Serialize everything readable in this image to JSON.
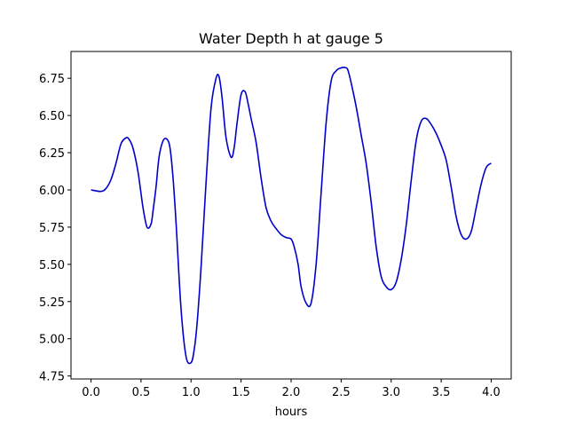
{
  "chart_data": {
    "type": "line",
    "title": "Water Depth h at gauge 5",
    "xlabel": "hours",
    "ylabel": "",
    "xlim": [
      -0.2,
      4.2
    ],
    "ylim": [
      4.73,
      6.93
    ],
    "grid": false,
    "x_ticks": [
      0.0,
      0.5,
      1.0,
      1.5,
      2.0,
      2.5,
      3.0,
      3.5,
      4.0
    ],
    "x_tick_labels": [
      "0.0",
      "0.5",
      "1.0",
      "1.5",
      "2.0",
      "2.5",
      "3.0",
      "3.5",
      "4.0"
    ],
    "y_ticks": [
      4.75,
      5.0,
      5.25,
      5.5,
      5.75,
      6.0,
      6.25,
      6.5,
      6.75
    ],
    "y_tick_labels": [
      "4.75",
      "5.00",
      "5.25",
      "5.50",
      "5.75",
      "6.00",
      "6.25",
      "6.50",
      "6.75"
    ],
    "series": [
      {
        "color": "#0000cc",
        "x": [
          0.0,
          0.1,
          0.15,
          0.2,
          0.25,
          0.3,
          0.35,
          0.38,
          0.42,
          0.47,
          0.52,
          0.56,
          0.6,
          0.62,
          0.65,
          0.68,
          0.72,
          0.76,
          0.79,
          0.82,
          0.85,
          0.9,
          0.95,
          1.0,
          1.03,
          1.06,
          1.1,
          1.15,
          1.2,
          1.25,
          1.28,
          1.31,
          1.35,
          1.4,
          1.43,
          1.46,
          1.5,
          1.54,
          1.57,
          1.6,
          1.65,
          1.7,
          1.75,
          1.8,
          1.85,
          1.9,
          1.95,
          2.0,
          2.03,
          2.07,
          2.1,
          2.15,
          2.2,
          2.25,
          2.3,
          2.35,
          2.4,
          2.45,
          2.5,
          2.55,
          2.57,
          2.6,
          2.65,
          2.7,
          2.75,
          2.8,
          2.85,
          2.9,
          2.95,
          3.0,
          3.05,
          3.1,
          3.15,
          3.2,
          3.25,
          3.3,
          3.35,
          3.4,
          3.45,
          3.5,
          3.55,
          3.6,
          3.65,
          3.7,
          3.75,
          3.8,
          3.85,
          3.9,
          3.95,
          4.0
        ],
        "y": [
          6.0,
          5.99,
          6.01,
          6.07,
          6.18,
          6.31,
          6.35,
          6.34,
          6.28,
          6.12,
          5.88,
          5.75,
          5.77,
          5.86,
          6.02,
          6.22,
          6.33,
          6.34,
          6.28,
          6.08,
          5.78,
          5.2,
          4.88,
          4.84,
          4.92,
          5.1,
          5.48,
          6.05,
          6.55,
          6.75,
          6.76,
          6.62,
          6.35,
          6.22,
          6.28,
          6.45,
          6.64,
          6.66,
          6.58,
          6.48,
          6.32,
          6.08,
          5.88,
          5.79,
          5.74,
          5.7,
          5.68,
          5.67,
          5.62,
          5.5,
          5.35,
          5.24,
          5.24,
          5.5,
          5.98,
          6.45,
          6.73,
          6.8,
          6.82,
          6.82,
          6.8,
          6.72,
          6.56,
          6.37,
          6.18,
          5.92,
          5.62,
          5.42,
          5.35,
          5.33,
          5.38,
          5.53,
          5.76,
          6.06,
          6.33,
          6.46,
          6.48,
          6.44,
          6.38,
          6.3,
          6.2,
          6.02,
          5.82,
          5.7,
          5.67,
          5.72,
          5.88,
          6.04,
          6.15,
          6.18
        ]
      }
    ]
  }
}
